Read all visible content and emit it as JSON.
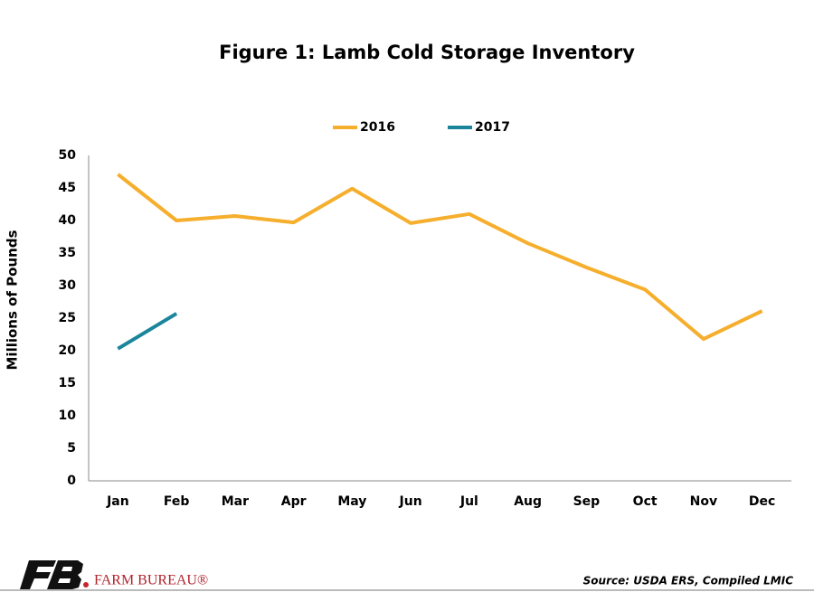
{
  "chart_data": {
    "type": "line",
    "title": "Figure 1: Lamb Cold Storage Inventory",
    "y_label": "Millions of Pounds",
    "categories": [
      "Jan",
      "Feb",
      "Mar",
      "Apr",
      "May",
      "Jun",
      "Jul",
      "Aug",
      "Sep",
      "Oct",
      "Nov",
      "Dec"
    ],
    "series": [
      {
        "name": "2016",
        "color": "#f6ae2d",
        "values": [
          47.1,
          40.0,
          40.7,
          39.7,
          44.9,
          39.6,
          41.0,
          36.5,
          32.8,
          29.4,
          21.8,
          26.1
        ]
      },
      {
        "name": "2017",
        "color": "#1b859c",
        "values": [
          20.3,
          25.7,
          null,
          null,
          null,
          null,
          null,
          null,
          null,
          null,
          null,
          null
        ]
      }
    ],
    "ylim": [
      0,
      50
    ],
    "yticks": [
      0,
      5,
      10,
      15,
      20,
      25,
      30,
      35,
      40,
      45,
      50
    ],
    "grid": false,
    "legend": "top",
    "source": "Source: USDA ERS, Compiled LMIC"
  },
  "brand": "FARM BUREAU®"
}
